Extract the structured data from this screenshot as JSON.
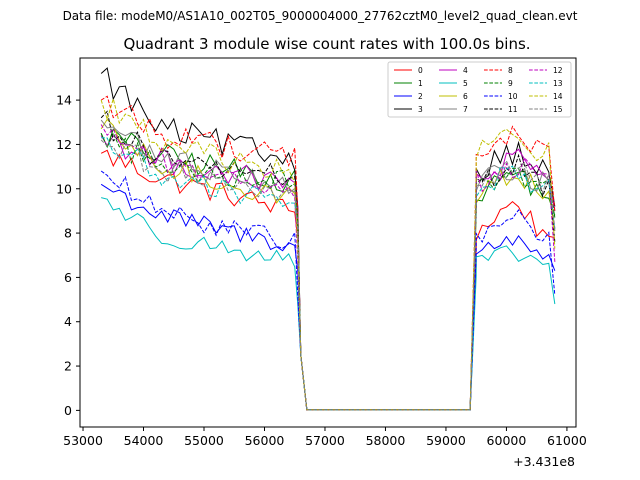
{
  "chart_data": {
    "type": "line",
    "suptitle": "Data file: modeM0/AS1A10_002T05_9000004000_27762cztM0_level2_quad_clean.evt",
    "title": "Quadrant 3 module wise count rates with 100.0s bins.",
    "xlabel": "",
    "ylabel": "",
    "offset_label": "+3.431e8",
    "xlim": [
      52950,
      61150
    ],
    "ylim": [
      -0.75,
      15.9
    ],
    "xticks": [
      53000,
      54000,
      55000,
      56000,
      57000,
      58000,
      59000,
      60000,
      61000
    ],
    "xtick_labels": [
      "53000",
      "54000",
      "55000",
      "56000",
      "57000",
      "58000",
      "59000",
      "60000",
      "61000"
    ],
    "yticks": [
      0,
      2,
      4,
      6,
      8,
      10,
      12,
      14
    ],
    "ytick_labels": [
      "0",
      "2",
      "4",
      "6",
      "8",
      "10",
      "12",
      "14"
    ],
    "legend_position": "top-right",
    "segments": [
      {
        "start": 53300,
        "end": 56500,
        "bins": 33
      },
      {
        "start": 56600,
        "end": 56700,
        "bins": 2
      },
      {
        "start": 56700,
        "end": 59400,
        "bins": 28
      },
      {
        "start": 59400,
        "end": 60800,
        "bins": 15
      }
    ],
    "series": [
      {
        "name": "0",
        "color": "#ff0000",
        "dashed": false,
        "seg1": [
          11.6,
          10.5,
          9.0
        ],
        "seg2": [
          10.3,
          8.0
        ],
        "low": 7.8
      },
      {
        "name": "1",
        "color": "#008000",
        "dashed": false,
        "seg1": [
          12.5,
          11.5,
          10.3
        ],
        "seg2": [
          11.5,
          9.7
        ],
        "low": 8.8
      },
      {
        "name": "2",
        "color": "#0000ff",
        "dashed": false,
        "seg1": [
          10.2,
          8.8,
          7.4
        ],
        "seg2": [
          8.2,
          7.1
        ],
        "low": 6.3
      },
      {
        "name": "3",
        "color": "#000000",
        "dashed": false,
        "seg1": [
          15.2,
          12.7,
          11.3
        ],
        "seg2": [
          12.4,
          10.8
        ],
        "low": 9.2
      },
      {
        "name": "4",
        "color": "#bf00bf",
        "dashed": false,
        "seg1": [
          12.4,
          11.3,
          10.1
        ],
        "seg2": [
          11.9,
          10.4
        ],
        "low": 9.0
      },
      {
        "name": "5",
        "color": "#00bfbf",
        "dashed": false,
        "seg1": [
          9.6,
          7.9,
          6.7
        ],
        "seg2": [
          7.4,
          6.6
        ],
        "low": 4.8
      },
      {
        "name": "6",
        "color": "#bfbf00",
        "dashed": false,
        "seg1": [
          12.7,
          11.0,
          9.5
        ],
        "seg2": [
          11.4,
          9.8
        ],
        "low": 8.1
      },
      {
        "name": "7",
        "color": "#808080",
        "dashed": false,
        "seg1": [
          13.1,
          11.4,
          10.2
        ],
        "seg2": [
          11.3,
          10.2
        ],
        "low": 8.1
      },
      {
        "name": "8",
        "color": "#ff0000",
        "dashed": true,
        "seg1": [
          14.0,
          12.5,
          11.4
        ],
        "seg2": [
          12.8,
          11.7
        ],
        "low": 9.0
      },
      {
        "name": "9",
        "color": "#008000",
        "dashed": true,
        "seg1": [
          12.5,
          11.0,
          10.3
        ],
        "seg2": [
          11.1,
          10.2
        ],
        "low": 8.7
      },
      {
        "name": "10",
        "color": "#0000ff",
        "dashed": true,
        "seg1": [
          10.8,
          8.9,
          7.6
        ],
        "seg2": [
          9.4,
          7.8
        ],
        "low": 5.2
      },
      {
        "name": "11",
        "color": "#000000",
        "dashed": true,
        "seg1": [
          13.2,
          11.3,
          10.5
        ],
        "seg2": [
          11.6,
          10.1
        ],
        "low": 7.6
      },
      {
        "name": "12",
        "color": "#bf00bf",
        "dashed": true,
        "seg1": [
          12.9,
          11.2,
          10.0
        ],
        "seg2": [
          11.6,
          10.3
        ],
        "low": 6.7
      },
      {
        "name": "13",
        "color": "#00bfbf",
        "dashed": true,
        "seg1": [
          12.3,
          10.6,
          9.2
        ],
        "seg2": [
          11.2,
          10.0
        ],
        "low": 8.2
      },
      {
        "name": "14",
        "color": "#bfbf00",
        "dashed": true,
        "seg1": [
          14.0,
          12.0,
          10.6
        ],
        "seg2": [
          12.9,
          11.6
        ],
        "low": 7.3
      },
      {
        "name": "15",
        "color": "#808080",
        "dashed": true,
        "seg1": [
          12.2,
          10.9,
          9.6
        ],
        "seg2": [
          11.3,
          10.2
        ],
        "low": 8.2
      }
    ]
  }
}
